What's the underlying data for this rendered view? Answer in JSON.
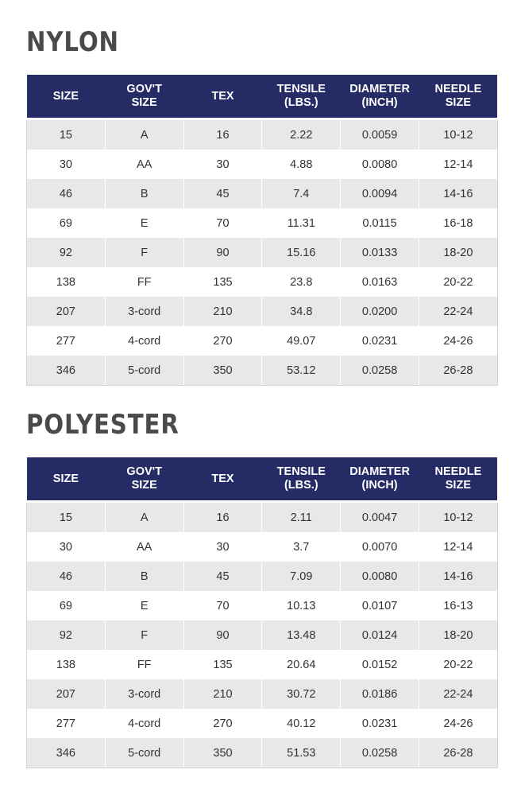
{
  "columns": [
    [
      "SIZE"
    ],
    [
      "GOV'T",
      "SIZE"
    ],
    [
      "TEX"
    ],
    [
      "TENSILE",
      "(LBS.)"
    ],
    [
      "DIAMETER",
      "(INCH)"
    ],
    [
      "NEEDLE",
      "SIZE"
    ]
  ],
  "nylon": {
    "title": "NYLON",
    "rows": [
      [
        "15",
        "A",
        "16",
        "2.22",
        "0.0059",
        "10-12"
      ],
      [
        "30",
        "AA",
        "30",
        "4.88",
        "0.0080",
        "12-14"
      ],
      [
        "46",
        "B",
        "45",
        "7.4",
        "0.0094",
        "14-16"
      ],
      [
        "69",
        "E",
        "70",
        "11.31",
        "0.0115",
        "16-18"
      ],
      [
        "92",
        "F",
        "90",
        "15.16",
        "0.0133",
        "18-20"
      ],
      [
        "138",
        "FF",
        "135",
        "23.8",
        "0.0163",
        "20-22"
      ],
      [
        "207",
        "3-cord",
        "210",
        "34.8",
        "0.0200",
        "22-24"
      ],
      [
        "277",
        "4-cord",
        "270",
        "49.07",
        "0.0231",
        "24-26"
      ],
      [
        "346",
        "5-cord",
        "350",
        "53.12",
        "0.0258",
        "26-28"
      ]
    ]
  },
  "polyester": {
    "title": "POLYESTER",
    "rows": [
      [
        "15",
        "A",
        "16",
        "2.11",
        "0.0047",
        "10-12"
      ],
      [
        "30",
        "AA",
        "30",
        "3.7",
        "0.0070",
        "12-14"
      ],
      [
        "46",
        "B",
        "45",
        "7.09",
        "0.0080",
        "14-16"
      ],
      [
        "69",
        "E",
        "70",
        "10.13",
        "0.0107",
        "16-13"
      ],
      [
        "92",
        "F",
        "90",
        "13.48",
        "0.0124",
        "18-20"
      ],
      [
        "138",
        "FF",
        "135",
        "20.64",
        "0.0152",
        "20-22"
      ],
      [
        "207",
        "3-cord",
        "210",
        "30.72",
        "0.0186",
        "22-24"
      ],
      [
        "277",
        "4-cord",
        "270",
        "40.12",
        "0.0231",
        "24-26"
      ],
      [
        "346",
        "5-cord",
        "350",
        "51.53",
        "0.0258",
        "26-28"
      ]
    ]
  }
}
